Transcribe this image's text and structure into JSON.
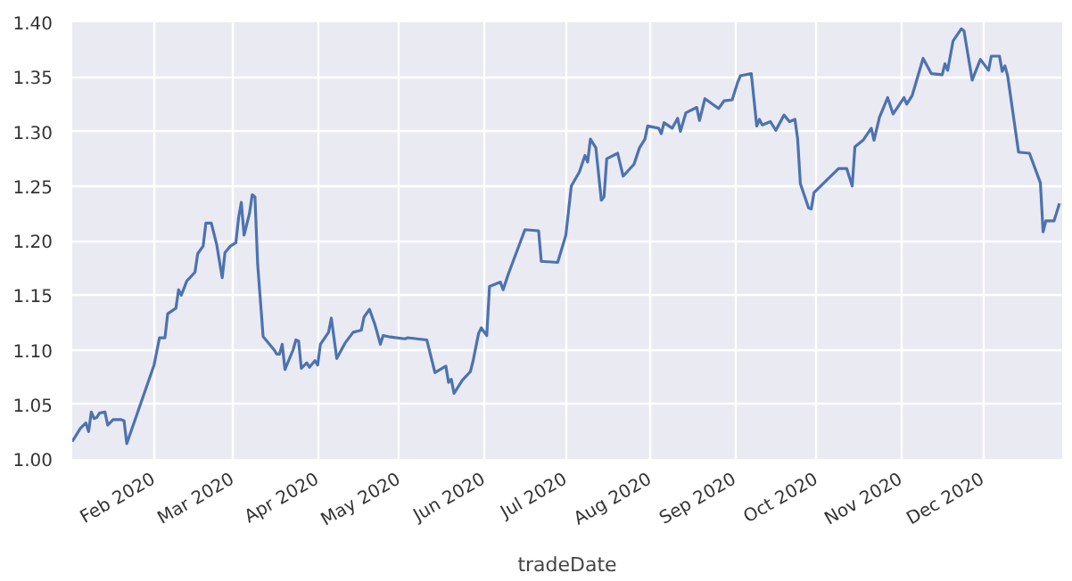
{
  "chart_data": {
    "type": "line",
    "xlabel": "tradeDate",
    "x": [
      "2020-01-02",
      "2020-01-05",
      "2020-01-07",
      "2020-01-08",
      "2020-01-09",
      "2020-01-10",
      "2020-01-11",
      "2020-01-12",
      "2020-01-14",
      "2020-01-15",
      "2020-01-17",
      "2020-01-20",
      "2020-01-21",
      "2020-01-22",
      "2020-02-01",
      "2020-02-03",
      "2020-02-05",
      "2020-02-06",
      "2020-02-09",
      "2020-02-10",
      "2020-02-11",
      "2020-02-13",
      "2020-02-16",
      "2020-02-17",
      "2020-02-19",
      "2020-02-20",
      "2020-02-22",
      "2020-02-24",
      "2020-02-26",
      "2020-02-27",
      "2020-02-29",
      "2020-03-02",
      "2020-03-03",
      "2020-03-04",
      "2020-03-05",
      "2020-03-07",
      "2020-03-08",
      "2020-03-09",
      "2020-03-10",
      "2020-03-12",
      "2020-03-16",
      "2020-03-17",
      "2020-03-18",
      "2020-03-19",
      "2020-03-20",
      "2020-03-23",
      "2020-03-24",
      "2020-03-25",
      "2020-03-26",
      "2020-03-28",
      "2020-03-29",
      "2020-03-31",
      "2020-04-01",
      "2020-04-02",
      "2020-04-05",
      "2020-04-06",
      "2020-04-08",
      "2020-04-11",
      "2020-04-14",
      "2020-04-17",
      "2020-04-18",
      "2020-04-20",
      "2020-04-22",
      "2020-04-24",
      "2020-04-25",
      "2020-04-27",
      "2020-05-03",
      "2020-05-04",
      "2020-05-11",
      "2020-05-14",
      "2020-05-18",
      "2020-05-19",
      "2020-05-20",
      "2020-05-21",
      "2020-05-24",
      "2020-05-27",
      "2020-05-28",
      "2020-05-30",
      "2020-05-31",
      "2020-06-02",
      "2020-06-03",
      "2020-06-07",
      "2020-06-08",
      "2020-06-10",
      "2020-06-13",
      "2020-06-16",
      "2020-06-21",
      "2020-06-22",
      "2020-06-28",
      "2020-07-01",
      "2020-07-03",
      "2020-07-06",
      "2020-07-08",
      "2020-07-09",
      "2020-07-10",
      "2020-07-12",
      "2020-07-14",
      "2020-07-15",
      "2020-07-16",
      "2020-07-20",
      "2020-07-22",
      "2020-07-26",
      "2020-07-28",
      "2020-07-30",
      "2020-07-31",
      "2020-08-04",
      "2020-08-05",
      "2020-08-06",
      "2020-08-09",
      "2020-08-11",
      "2020-08-12",
      "2020-08-14",
      "2020-08-18",
      "2020-08-19",
      "2020-08-21",
      "2020-08-26",
      "2020-08-28",
      "2020-08-31",
      "2020-09-02",
      "2020-09-03",
      "2020-09-07",
      "2020-09-09",
      "2020-09-10",
      "2020-09-11",
      "2020-09-14",
      "2020-09-16",
      "2020-09-19",
      "2020-09-21",
      "2020-09-23",
      "2020-09-24",
      "2020-09-25",
      "2020-09-28",
      "2020-09-29",
      "2020-09-30",
      "2020-10-09",
      "2020-10-12",
      "2020-10-14",
      "2020-10-15",
      "2020-10-18",
      "2020-10-21",
      "2020-10-22",
      "2020-10-24",
      "2020-10-27",
      "2020-10-29",
      "2020-11-02",
      "2020-11-03",
      "2020-11-05",
      "2020-11-09",
      "2020-11-12",
      "2020-11-16",
      "2020-11-17",
      "2020-11-18",
      "2020-11-20",
      "2020-11-23",
      "2020-11-24",
      "2020-11-27",
      "2020-11-30",
      "2020-12-03",
      "2020-12-04",
      "2020-12-07",
      "2020-12-08",
      "2020-12-09",
      "2020-12-10",
      "2020-12-14",
      "2020-12-18",
      "2020-12-22",
      "2020-12-23",
      "2020-12-24",
      "2020-12-27",
      "2020-12-29"
    ],
    "series": [
      {
        "color": "#4c72b0",
        "values": [
          1.016,
          1.028,
          1.033,
          1.025,
          1.043,
          1.037,
          1.038,
          1.042,
          1.043,
          1.031,
          1.036,
          1.036,
          1.035,
          1.014,
          1.086,
          1.111,
          1.111,
          1.133,
          1.138,
          1.155,
          1.15,
          1.163,
          1.171,
          1.188,
          1.195,
          1.216,
          1.216,
          1.196,
          1.166,
          1.189,
          1.195,
          1.198,
          1.221,
          1.235,
          1.205,
          1.225,
          1.242,
          1.24,
          1.178,
          1.112,
          1.1,
          1.096,
          1.096,
          1.105,
          1.082,
          1.1,
          1.109,
          1.108,
          1.083,
          1.088,
          1.084,
          1.09,
          1.086,
          1.105,
          1.116,
          1.129,
          1.092,
          1.106,
          1.116,
          1.118,
          1.13,
          1.137,
          1.123,
          1.105,
          1.113,
          1.112,
          1.11,
          1.111,
          1.109,
          1.079,
          1.085,
          1.07,
          1.073,
          1.06,
          1.072,
          1.08,
          1.09,
          1.115,
          1.12,
          1.113,
          1.158,
          1.162,
          1.155,
          1.17,
          1.19,
          1.21,
          1.209,
          1.181,
          1.18,
          1.205,
          1.25,
          1.263,
          1.278,
          1.272,
          1.293,
          1.285,
          1.237,
          1.24,
          1.275,
          1.28,
          1.259,
          1.27,
          1.285,
          1.293,
          1.305,
          1.303,
          1.298,
          1.308,
          1.303,
          1.312,
          1.3,
          1.317,
          1.322,
          1.31,
          1.33,
          1.321,
          1.328,
          1.329,
          1.345,
          1.351,
          1.353,
          1.305,
          1.311,
          1.306,
          1.309,
          1.301,
          1.315,
          1.309,
          1.311,
          1.293,
          1.252,
          1.23,
          1.229,
          1.244,
          1.266,
          1.266,
          1.25,
          1.286,
          1.292,
          1.303,
          1.292,
          1.313,
          1.331,
          1.316,
          1.331,
          1.325,
          1.333,
          1.367,
          1.353,
          1.352,
          1.362,
          1.356,
          1.383,
          1.394,
          1.392,
          1.347,
          1.366,
          1.356,
          1.369,
          1.369,
          1.355,
          1.36,
          1.351,
          1.281,
          1.28,
          1.253,
          1.208,
          1.218,
          1.218,
          1.234
        ]
      }
    ],
    "xlim": [
      "2020-01-02",
      "2020-12-30"
    ],
    "xticks": [
      {
        "value": "2020-02-01",
        "label": "Feb 2020"
      },
      {
        "value": "2020-03-01",
        "label": "Mar 2020"
      },
      {
        "value": "2020-04-01",
        "label": "Apr 2020"
      },
      {
        "value": "2020-05-01",
        "label": "May 2020"
      },
      {
        "value": "2020-06-01",
        "label": "Jun 2020"
      },
      {
        "value": "2020-07-01",
        "label": "Jul 2020"
      },
      {
        "value": "2020-08-01",
        "label": "Aug 2020"
      },
      {
        "value": "2020-09-01",
        "label": "Sep 2020"
      },
      {
        "value": "2020-10-01",
        "label": "Oct 2020"
      },
      {
        "value": "2020-11-01",
        "label": "Nov 2020"
      },
      {
        "value": "2020-12-01",
        "label": "Dec 2020"
      }
    ],
    "ylim": [
      1.0,
      1.4
    ],
    "yticks": [
      {
        "value": 1.0,
        "label": "1.00"
      },
      {
        "value": 1.05,
        "label": "1.05"
      },
      {
        "value": 1.1,
        "label": "1.10"
      },
      {
        "value": 1.15,
        "label": "1.15"
      },
      {
        "value": 1.2,
        "label": "1.20"
      },
      {
        "value": 1.25,
        "label": "1.25"
      },
      {
        "value": 1.3,
        "label": "1.30"
      },
      {
        "value": 1.35,
        "label": "1.35"
      },
      {
        "value": 1.4,
        "label": "1.40"
      }
    ],
    "grid": true
  }
}
